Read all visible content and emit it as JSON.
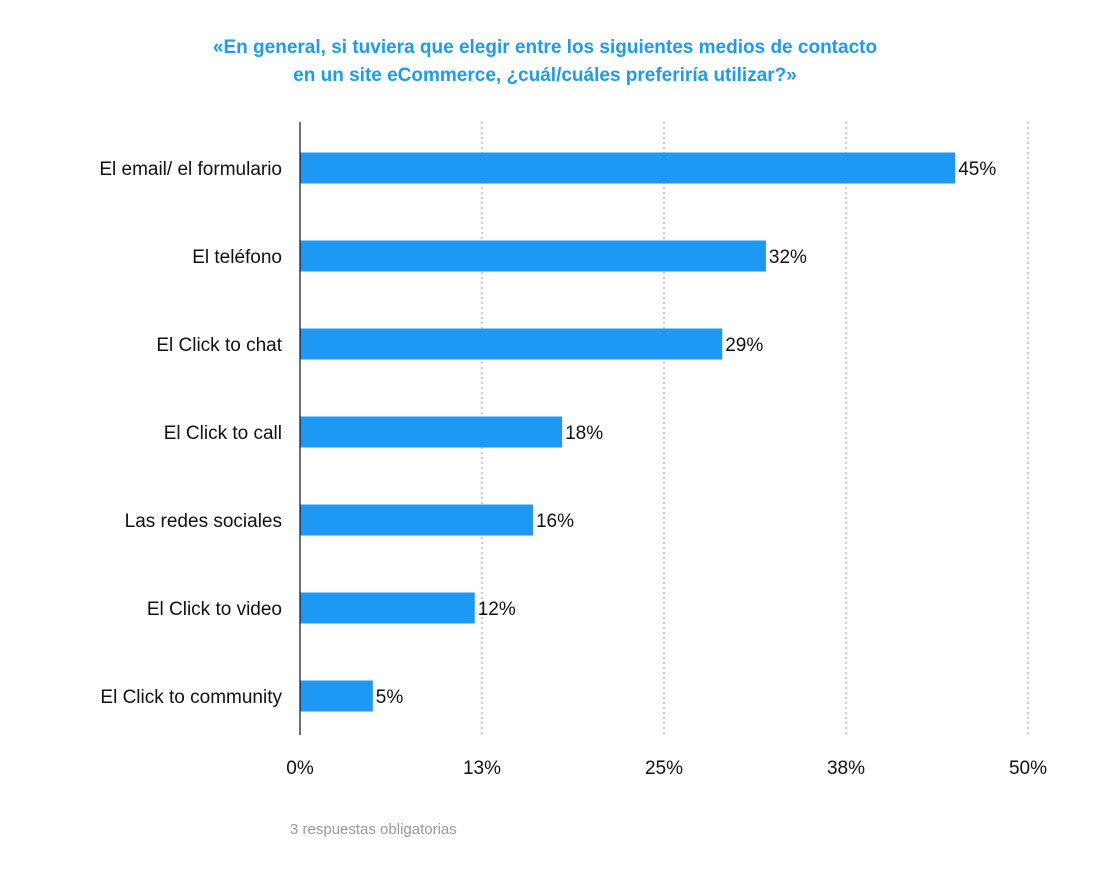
{
  "chart_data": {
    "type": "bar",
    "orientation": "horizontal",
    "title_lines": [
      "«En general, si tuviera que elegir entre los siguientes medios de contacto",
      "en un site eCommerce, ¿cuál/cuáles preferiría utilizar?»"
    ],
    "categories": [
      "El email/ el formulario",
      "El teléfono",
      "El Click to chat",
      "El Click to call",
      "Las redes sociales",
      "El Click to video",
      "El Click to community"
    ],
    "values": [
      45,
      32,
      29,
      18,
      16,
      12,
      5
    ],
    "value_labels": [
      "45%",
      "32%",
      "29%",
      "18%",
      "16%",
      "12%",
      "5%"
    ],
    "xlim": [
      0,
      50
    ],
    "xticks": [
      0,
      12.5,
      25,
      37.5,
      50
    ],
    "xtick_labels": [
      "0%",
      "13%",
      "25%",
      "38%",
      "50%"
    ],
    "grid": "vertical-dotted",
    "bar_color": "#1e98f5",
    "title_color": "#1d9bf0"
  },
  "footnote": "3 respuestas obligatorias"
}
